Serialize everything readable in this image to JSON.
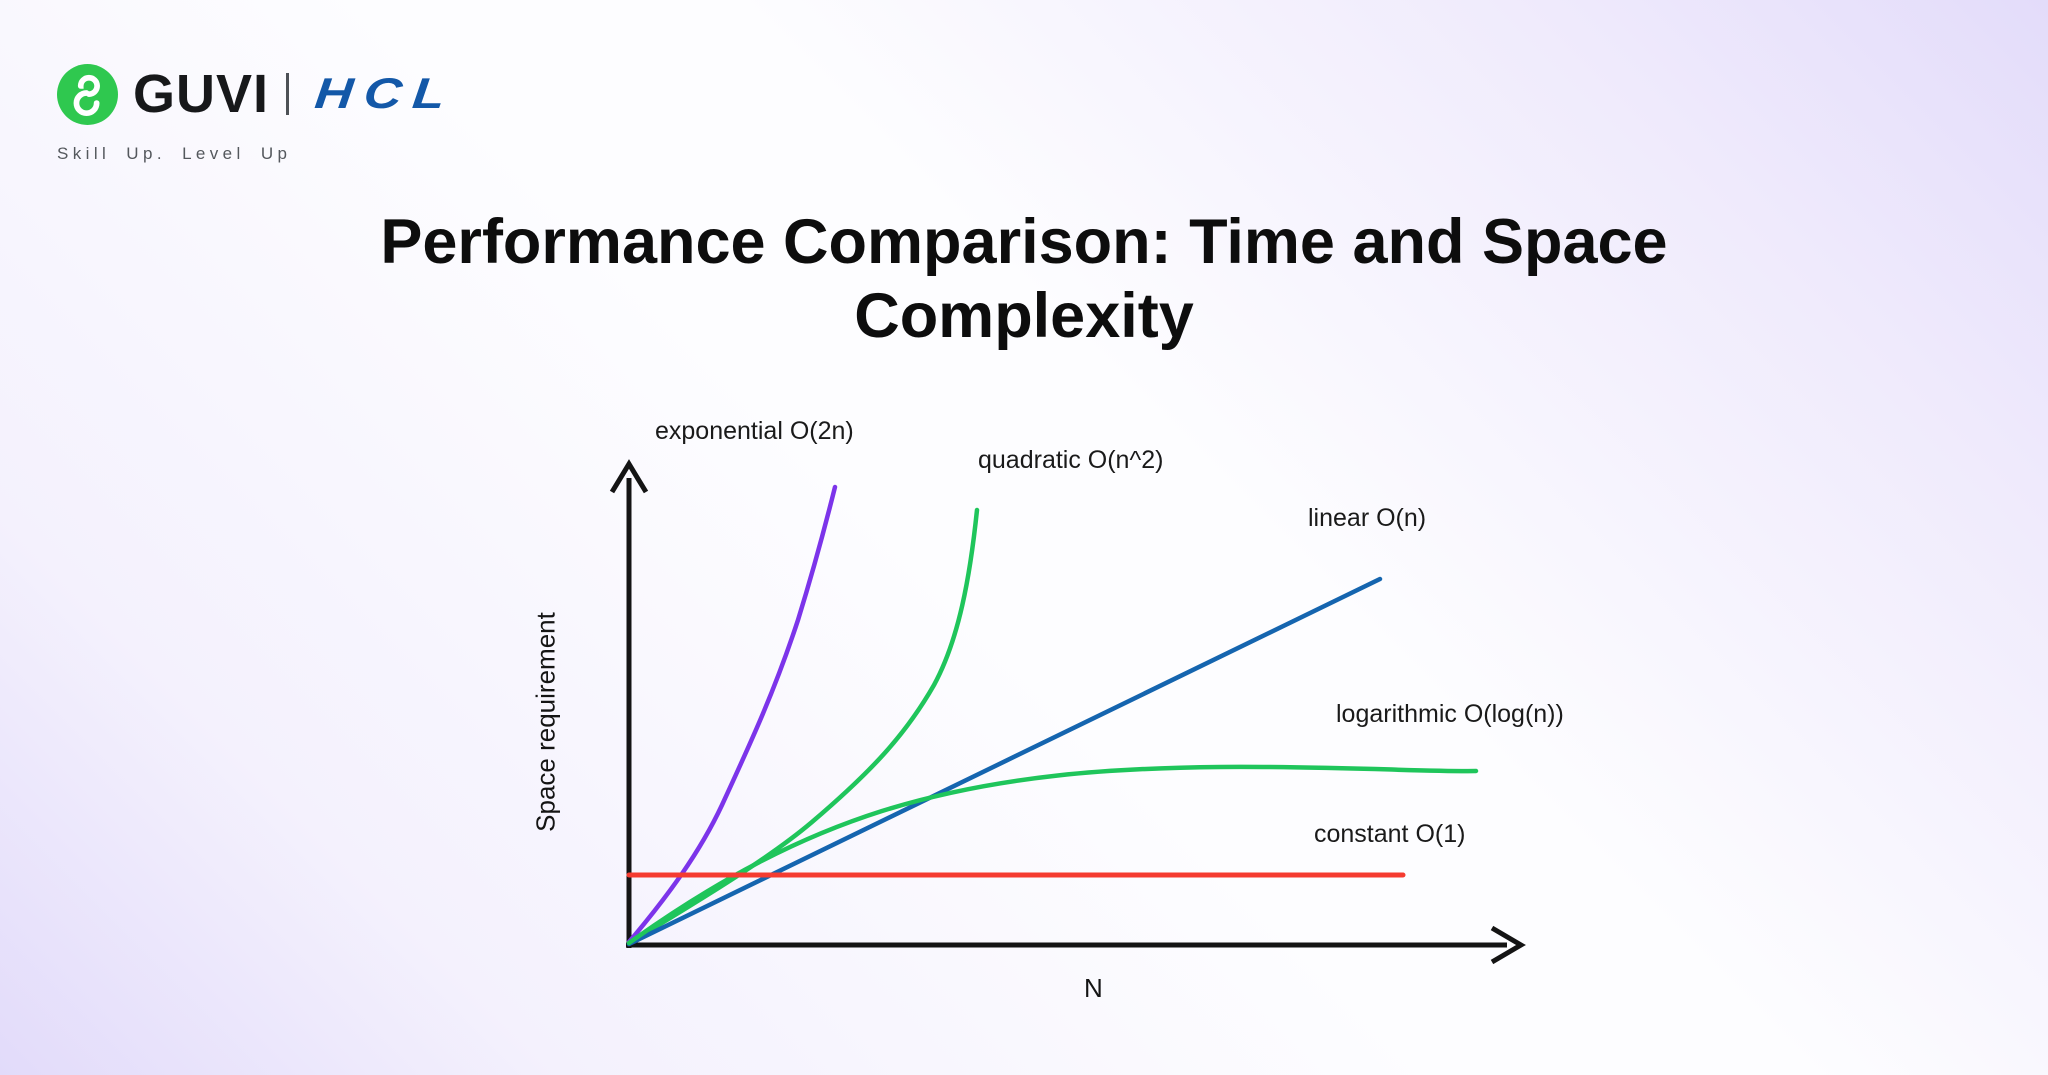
{
  "header": {
    "guvi_wordmark": "GUVI",
    "hcl_wordmark": "HCL",
    "tagline": "Skill Up. Level Up",
    "guvi_icon_color": "#2fc84f",
    "hcl_blue": "#1358a8"
  },
  "title": "Performance Comparison: Time and Space Complexity",
  "chart_data": {
    "type": "line",
    "title": "Performance Comparison: Time and Space Complexity",
    "xlabel": "N",
    "ylabel": "Space requirement",
    "grid": false,
    "axis_tick_labels": [],
    "legend_position": "inline-labels-next-to-curves",
    "axis_color": "#141414",
    "series": [
      {
        "label": "exponential O(2n)",
        "kind": "exponential",
        "color": "#7c34ea"
      },
      {
        "label": "quadratic O(n^2)",
        "kind": "quadratic",
        "color": "#1fc55b"
      },
      {
        "label": "linear O(n)",
        "kind": "linear",
        "color": "#1565af"
      },
      {
        "label": "logarithmic O(log(n))",
        "kind": "logarithmic",
        "color": "#1fc55b"
      },
      {
        "label": "constant O(1)",
        "kind": "constant",
        "color": "#f53b30"
      }
    ]
  }
}
